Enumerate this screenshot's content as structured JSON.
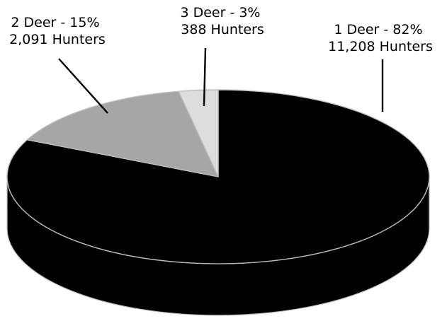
{
  "chart_data": {
    "type": "pie",
    "style": "3d",
    "categories": [
      "1 Deer",
      "2 Deer",
      "3 Deer"
    ],
    "percent": [
      82,
      15,
      3
    ],
    "hunters": [
      11208,
      2091,
      388
    ],
    "labels": [
      {
        "line1": "1 Deer - 82%",
        "line2": "11,208 Hunters"
      },
      {
        "line1": "2 Deer - 15%",
        "line2": "2,091 Hunters"
      },
      {
        "line1": "3 Deer - 3%",
        "line2": "388 Hunters"
      }
    ],
    "colors": [
      "#000000",
      "#a6a6a6",
      "#dddddd"
    ],
    "edge_color": "#bdbdbd",
    "legend": "none"
  }
}
